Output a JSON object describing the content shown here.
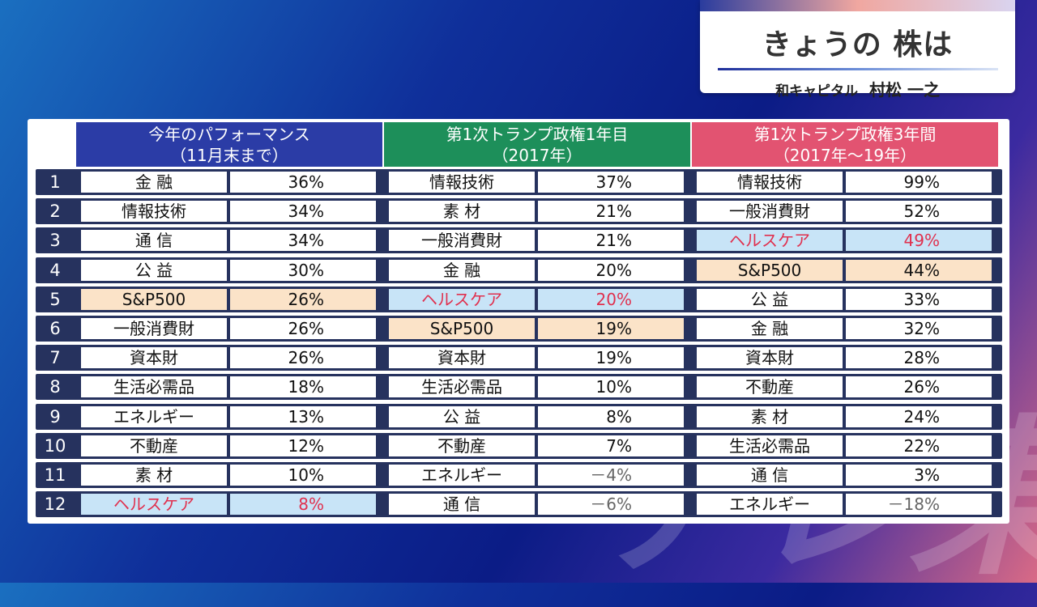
{
  "header": {
    "title": "きょうの 株は",
    "company": "和キャピタル",
    "person": "村松 一之"
  },
  "watermark": "テレ東",
  "columns": [
    {
      "line1": "今年のパフォーマンス",
      "line2": "（11月末まで）",
      "color": "#2b3ca6"
    },
    {
      "line1": "第1次トランプ政権1年目",
      "line2": "（2017年）",
      "color": "#1d8f5a"
    },
    {
      "line1": "第1次トランプ政権3年間",
      "line2": "（2017年～19年）",
      "color": "#e25371"
    }
  ],
  "rows": [
    {
      "rank": "1",
      "c": [
        [
          "金 融",
          "36%"
        ],
        [
          "情報技術",
          "37%"
        ],
        [
          "情報技術",
          "99%"
        ]
      ]
    },
    {
      "rank": "2",
      "c": [
        [
          "情報技術",
          "34%"
        ],
        [
          "素 材",
          "21%"
        ],
        [
          "一般消費財",
          "52%"
        ]
      ]
    },
    {
      "rank": "3",
      "c": [
        [
          "通 信",
          "34%"
        ],
        [
          "一般消費財",
          "21%"
        ],
        [
          "ヘルスケア",
          "49%"
        ]
      ]
    },
    {
      "rank": "4",
      "c": [
        [
          "公 益",
          "30%"
        ],
        [
          "金 融",
          "20%"
        ],
        [
          "S&P500",
          "44%"
        ]
      ]
    },
    {
      "rank": "5",
      "c": [
        [
          "S&P500",
          "26%"
        ],
        [
          "ヘルスケア",
          "20%"
        ],
        [
          "公 益",
          "33%"
        ]
      ]
    },
    {
      "rank": "6",
      "c": [
        [
          "一般消費財",
          "26%"
        ],
        [
          "S&P500",
          "19%"
        ],
        [
          "金 融",
          "32%"
        ]
      ]
    },
    {
      "rank": "7",
      "c": [
        [
          "資本財",
          "26%"
        ],
        [
          "資本財",
          "19%"
        ],
        [
          "資本財",
          "28%"
        ]
      ]
    },
    {
      "rank": "8",
      "c": [
        [
          "生活必需品",
          "18%"
        ],
        [
          "生活必需品",
          "10%"
        ],
        [
          "不動産",
          "26%"
        ]
      ]
    },
    {
      "rank": "9",
      "c": [
        [
          "エネルギー",
          "13%"
        ],
        [
          "公 益",
          "8%"
        ],
        [
          "素 材",
          "24%"
        ]
      ]
    },
    {
      "rank": "10",
      "c": [
        [
          "不動産",
          "12%"
        ],
        [
          "不動産",
          "7%"
        ],
        [
          "生活必需品",
          "22%"
        ]
      ]
    },
    {
      "rank": "11",
      "c": [
        [
          "素 材",
          "10%"
        ],
        [
          "エネルギー",
          "－4%"
        ],
        [
          "通 信",
          "3%"
        ]
      ]
    },
    {
      "rank": "12",
      "c": [
        [
          "ヘルスケア",
          "8%"
        ],
        [
          "通 信",
          "－6%"
        ],
        [
          "エネルギー",
          "－18%"
        ]
      ]
    }
  ]
}
